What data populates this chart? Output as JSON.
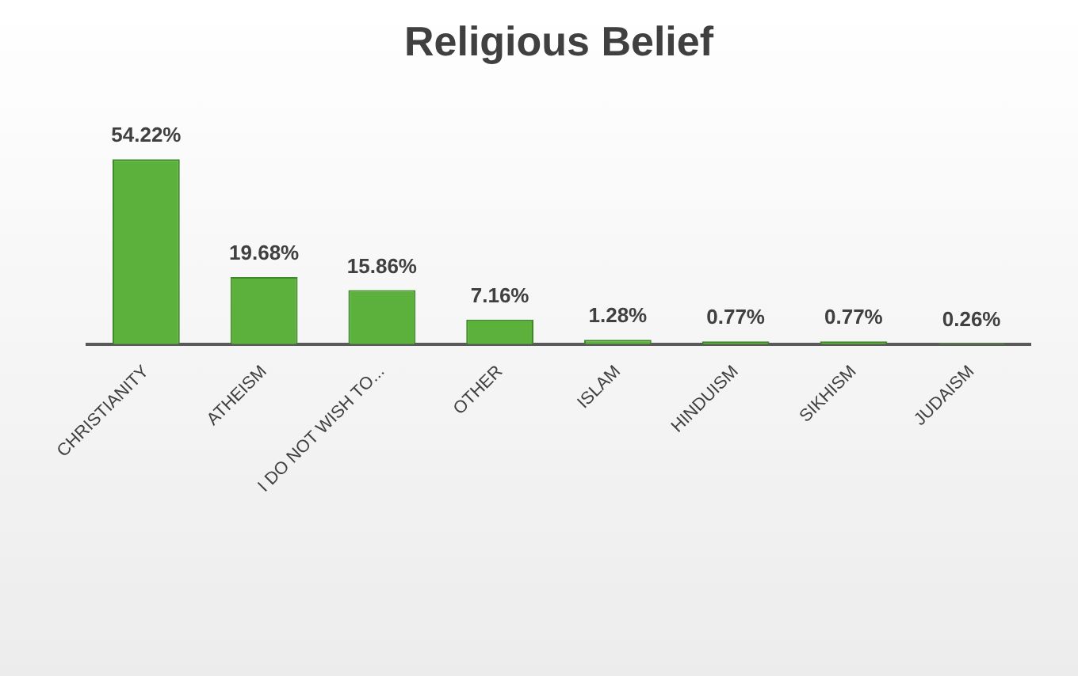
{
  "chart_data": {
    "type": "bar",
    "title": "Religious Belief",
    "categories": [
      "CHRISTIANITY",
      "ATHEISM",
      "I DO NOT WISH TO...",
      "OTHER",
      "ISLAM",
      "HINDUISM",
      "SIKHISM",
      "JUDAISM"
    ],
    "values": [
      54.22,
      19.68,
      15.86,
      7.16,
      1.28,
      0.77,
      0.77,
      0.26
    ],
    "value_labels": [
      "54.22%",
      "19.68%",
      "15.86%",
      "7.16%",
      "1.28%",
      "0.77%",
      "0.77%",
      "0.26%"
    ],
    "color": "#5cb13c",
    "legend": false
  }
}
